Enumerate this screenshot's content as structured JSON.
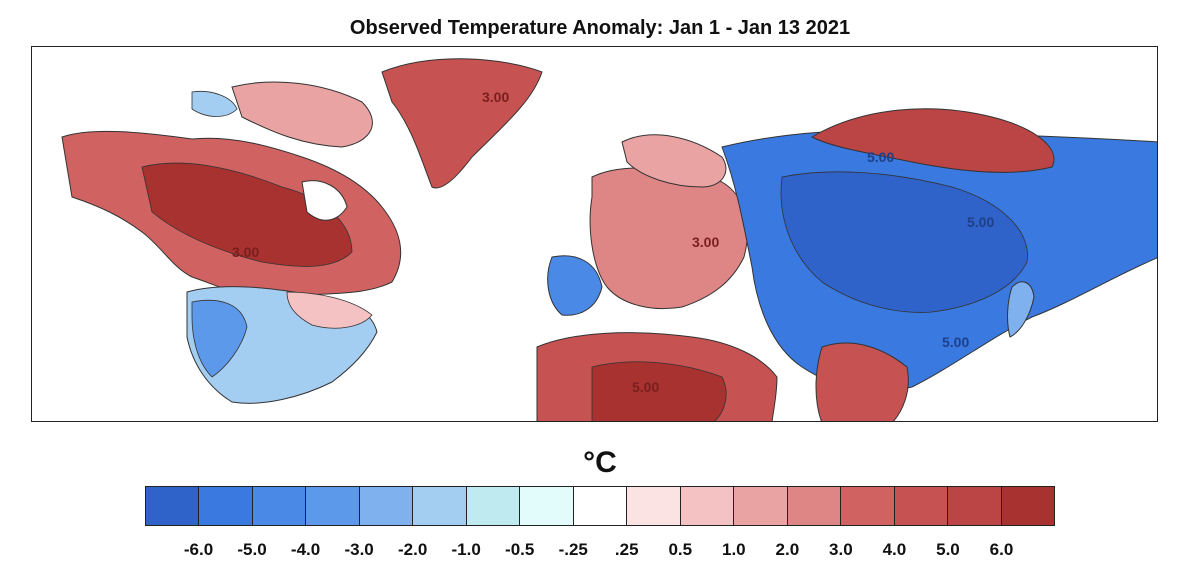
{
  "title": "Observed Temperature Anomaly: Jan 1 - Jan 13 2021",
  "colorbar": {
    "unit": "°C",
    "bins": [
      {
        "color": "#2f63c9"
      },
      {
        "color": "#3a79e0"
      },
      {
        "color": "#4a89e6"
      },
      {
        "color": "#5d99ea"
      },
      {
        "color": "#7fb1ee"
      },
      {
        "color": "#a4cdf2"
      },
      {
        "color": "#bfeaf0"
      },
      {
        "color": "#e2fcfc"
      },
      {
        "color": "#ffffff"
      },
      {
        "color": "#fbe3e3"
      },
      {
        "color": "#f4c2c2"
      },
      {
        "color": "#eaa3a3"
      },
      {
        "color": "#de8686"
      },
      {
        "color": "#d16262"
      },
      {
        "color": "#c75252"
      },
      {
        "color": "#bb4444"
      },
      {
        "color": "#a8322f"
      }
    ],
    "tick_labels": [
      "-6.0",
      "-5.0",
      "-4.0",
      "-3.0",
      "-2.0",
      "-1.0",
      "-0.5",
      "-.25",
      ".25",
      "0.5",
      "1.0",
      "2.0",
      "3.0",
      "4.0",
      "5.0",
      "6.0"
    ]
  },
  "map": {
    "contour_labels": [
      "3.00",
      "5.00",
      "5.00",
      "5.00",
      "3.00",
      "3.00",
      "5.00"
    ]
  }
}
